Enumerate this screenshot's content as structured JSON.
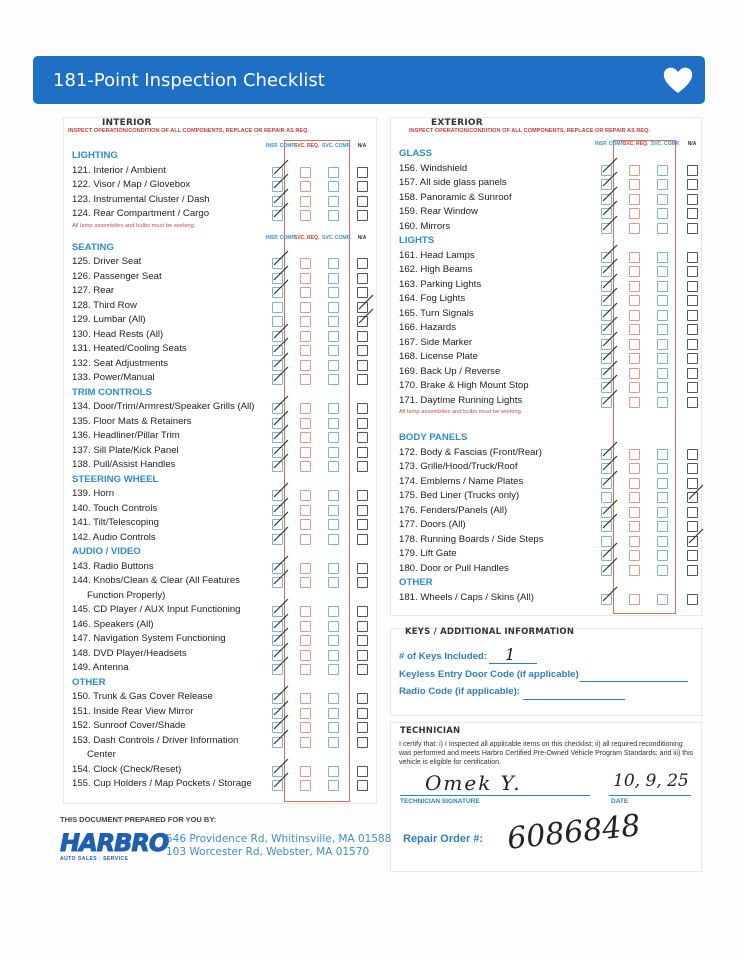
{
  "title": "181-Point Inspection Checklist",
  "heart_icon": "heart-icon",
  "colors": {
    "brand_blue": "#1f6fc5",
    "heading_blue": "#2e8bcc",
    "red": "#d23b3b"
  },
  "column_headers": {
    "insp": "INSP. COMP.",
    "req": "SVC. REQ.",
    "comp": "SVC. COMP.",
    "na": "N/A"
  },
  "interior": {
    "title": "INTERIOR",
    "subtitle": "INSPECT OPERATION/CONDITION OF ALL COMPONENTS, REPLACE OR REPAIR AS REQ.",
    "sections": [
      {
        "heading": "LIGHTING",
        "items": [
          {
            "label": "121. Interior / Ambient",
            "check": "insp"
          },
          {
            "label": "122. Visor / Map / Glovebox",
            "check": "insp"
          },
          {
            "label": "123. Instrumental Cluster / Dash",
            "check": "insp"
          },
          {
            "label": "124. Rear Compartment / Cargo",
            "check": "insp"
          }
        ],
        "note": "All lamp assemblies and bulbs must be working."
      },
      {
        "heading": "SEATING",
        "items": [
          {
            "label": "125. Driver Seat",
            "check": "insp"
          },
          {
            "label": "126. Passenger Seat",
            "check": "insp"
          },
          {
            "label": "127. Rear",
            "check": "insp"
          },
          {
            "label": "128. Third Row",
            "check": "na"
          },
          {
            "label": "129. Lumbar (All)",
            "check": "na"
          },
          {
            "label": "130. Head Rests (All)",
            "check": "insp"
          },
          {
            "label": "131. Heated/Cooling Seats",
            "check": "insp"
          },
          {
            "label": "132. Seat Adjustments",
            "check": "insp"
          },
          {
            "label": "133. Power/Manual",
            "check": "insp"
          }
        ]
      },
      {
        "heading": "TRIM CONTROLS",
        "items": [
          {
            "label": "134. Door/Trim/Armrest/Speaker Grills (All)",
            "check": "insp"
          },
          {
            "label": "135. Floor Mats & Retainers",
            "check": "insp"
          },
          {
            "label": "136. Headliner/Pillar Trim",
            "check": "insp"
          },
          {
            "label": "137. Sill Plate/Kick Panel",
            "check": "insp"
          },
          {
            "label": "138. Pull/Assist Handles",
            "check": "insp"
          }
        ]
      },
      {
        "heading": "STEERING WHEEL",
        "items": [
          {
            "label": "139. Horn",
            "check": "insp"
          },
          {
            "label": "140. Touch Controls",
            "check": "insp"
          },
          {
            "label": "141. Tilt/Telescoping",
            "check": "insp"
          },
          {
            "label": "142. Audio Controls",
            "check": "insp"
          }
        ]
      },
      {
        "heading": "AUDIO / VIDEO",
        "items": [
          {
            "label": "143. Radio Buttons",
            "check": "insp"
          },
          {
            "label": "144. Knobs/Clean & Clear (All Features",
            "cont": "Function Properly)",
            "check": "insp"
          },
          {
            "label": "145. CD Player / AUX Input Functioning",
            "check": "insp"
          },
          {
            "label": "146. Speakers (All)",
            "check": "insp"
          },
          {
            "label": "147. Navigation System Functioning",
            "check": "insp"
          },
          {
            "label": "148. DVD Player/Headsets",
            "check": "insp"
          },
          {
            "label": "149. Antenna",
            "check": "insp"
          }
        ]
      },
      {
        "heading": "OTHER",
        "items": [
          {
            "label": "150. Trunk & Gas Cover Release",
            "check": "insp"
          },
          {
            "label": "151. Inside Rear View Mirror",
            "check": "insp"
          },
          {
            "label": "152. Sunroof Cover/Shade",
            "check": "insp"
          },
          {
            "label": "153. Dash Controls / Driver Information",
            "cont": "Center",
            "check": "insp"
          },
          {
            "label": "154. Clock (Check/Reset)",
            "check": "insp"
          },
          {
            "label": "155. Cup Holders / Map Pockets / Storage",
            "check": "insp"
          }
        ]
      }
    ]
  },
  "exterior": {
    "title": "EXTERIOR",
    "subtitle": "INSPECT OPERATION/CONDITION OF ALL COMPONENTS, REPLACE OR REPAIR AS REQ.",
    "sections": [
      {
        "heading": "GLASS",
        "items": [
          {
            "label": "156. Windshield",
            "check": "insp"
          },
          {
            "label": "157. All side glass panels",
            "check": "insp"
          },
          {
            "label": "158. Panoramic & Sunroof",
            "check": "insp"
          },
          {
            "label": "159. Rear Window",
            "check": "insp"
          },
          {
            "label": "160. Mirrors",
            "check": "insp"
          }
        ]
      },
      {
        "heading": "LIGHTS",
        "items": [
          {
            "label": "161. Head Lamps",
            "check": "insp"
          },
          {
            "label": "162. High Beams",
            "check": "insp"
          },
          {
            "label": "163. Parking Lights",
            "check": "insp"
          },
          {
            "label": "164. Fog Lights",
            "check": "insp"
          },
          {
            "label": "165. Turn Signals",
            "check": "insp"
          },
          {
            "label": "166. Hazards",
            "check": "insp"
          },
          {
            "label": "167. Side Marker",
            "check": "insp"
          },
          {
            "label": "168. License Plate",
            "check": "insp"
          },
          {
            "label": "169. Back Up / Reverse",
            "check": "insp"
          },
          {
            "label": "170. Brake & High Mount Stop",
            "check": "insp"
          },
          {
            "label": "171. Daytime Running Lights",
            "check": "insp"
          }
        ],
        "note": "All lamp assemblies and bulbs must be working."
      },
      {
        "heading": "BODY PANELS",
        "items": [
          {
            "label": "172. Body & Fascias (Front/Rear)",
            "check": "insp"
          },
          {
            "label": "173. Grille/Hood/Truck/Roof",
            "check": "insp"
          },
          {
            "label": "174. Emblems / Name Plates",
            "check": "insp"
          },
          {
            "label": "175. Bed Liner (Trucks only)",
            "check": "na"
          },
          {
            "label": "176. Fenders/Panels (All)",
            "check": "insp"
          },
          {
            "label": "177. Doors (All)",
            "check": "insp"
          },
          {
            "label": "178. Running Boards / Side Steps",
            "check": "na"
          },
          {
            "label": "179. Lift Gate",
            "check": "insp"
          },
          {
            "label": "180. Door or Pull Handles",
            "check": "insp"
          }
        ]
      },
      {
        "heading": "OTHER",
        "items": [
          {
            "label": "181. Wheels / Caps / Skins (All)",
            "check": "insp"
          }
        ]
      }
    ]
  },
  "keys": {
    "title": "KEYS / ADDITIONAL INFORMATION",
    "keys_label": "# of Keys Included:",
    "keys_value": "1",
    "keyless_label": "Keyless Entry Door Code (if applicable)",
    "keyless_value": "",
    "radio_label": "Radio Code (if applicable):",
    "radio_value": ""
  },
  "technician": {
    "title": "TECHNICIAN",
    "certify": "I certify that: i) I inspected all applicable items on this checklist; ii) all required reconditioning was performed and meets Harbro Certified Pre-Owned Vehicle Program Standards; and iii) this vehicle is eligible for certification.",
    "signature": "Omek Y.",
    "signature_label": "TECHNICIAN SIGNATURE",
    "date": "10, 9, 25",
    "date_label": "DATE",
    "repair_order_label": "Repair Order #:",
    "repair_order_value": "6086848"
  },
  "footer": {
    "prepared_by": "THIS DOCUMENT PREPARED FOR YOU BY:",
    "logo_text": "HARBRO",
    "logo_tagline": "AUTO SALES · SERVICE",
    "address1": "546 Providence Rd, Whitinsville, MA 01588",
    "address2": "103 Worcester Rd, Webster, MA 01570"
  }
}
